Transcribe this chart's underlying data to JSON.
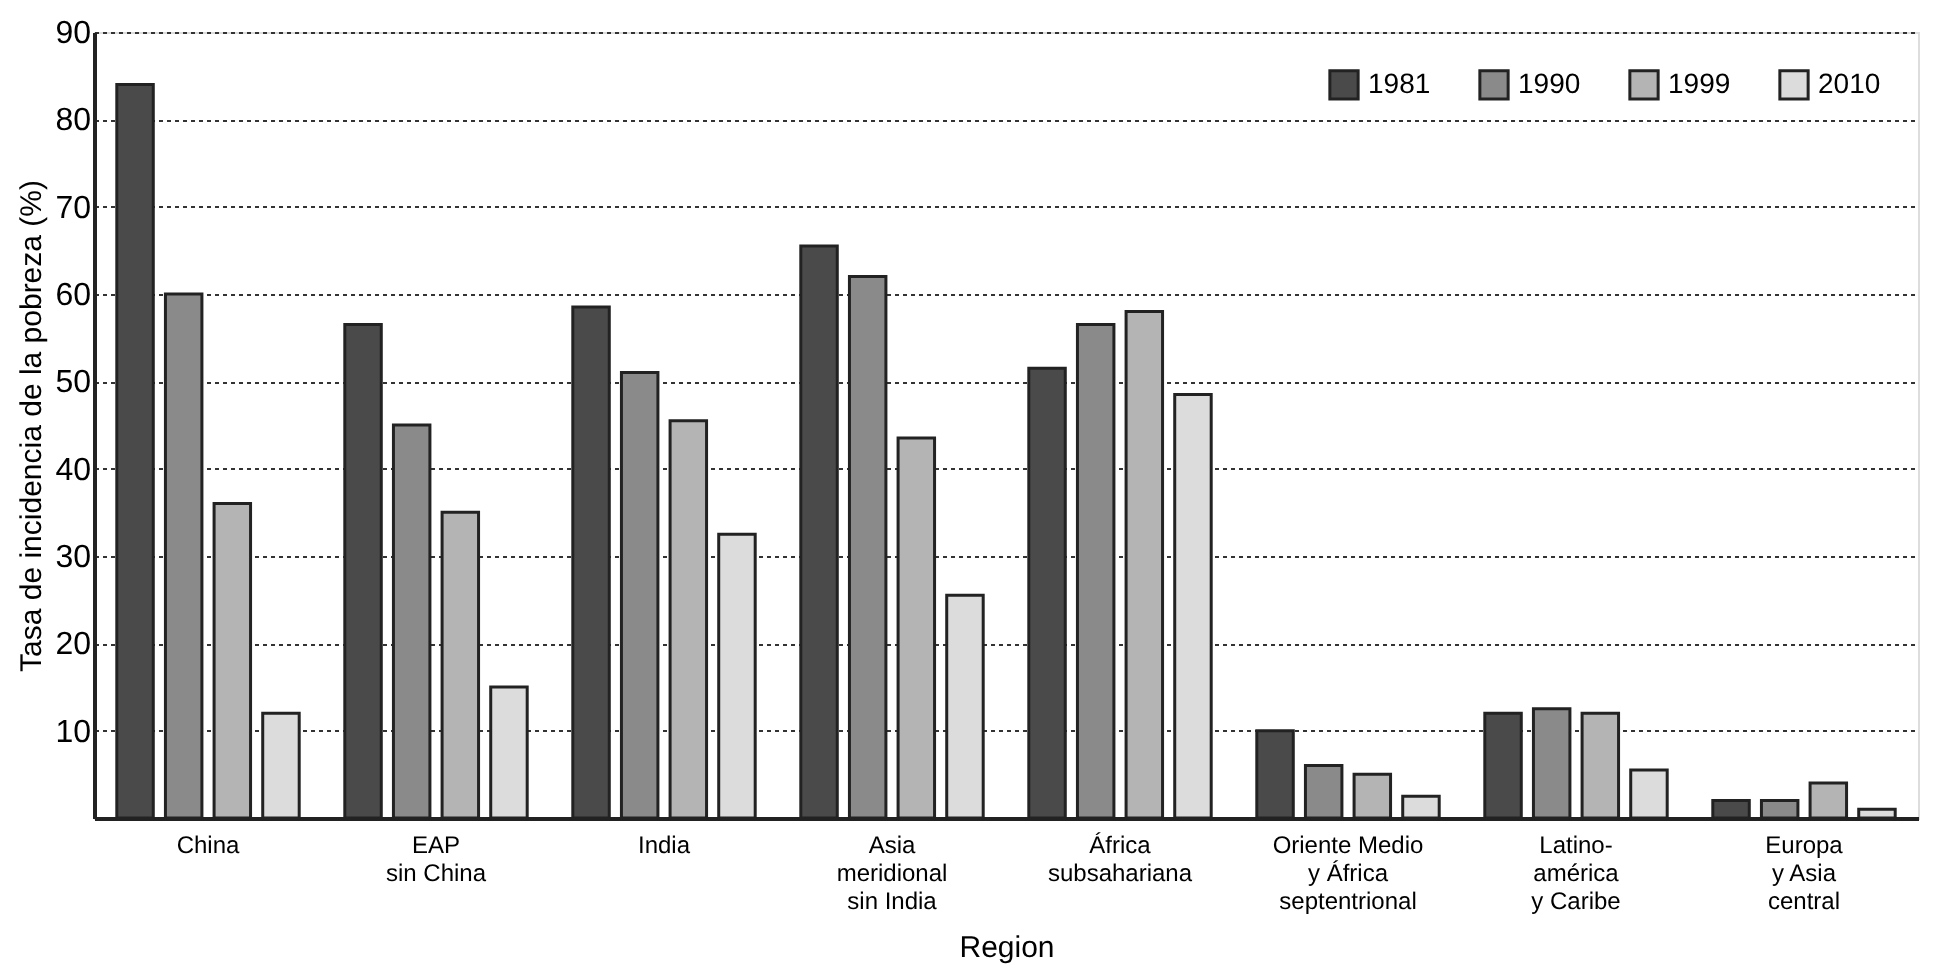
{
  "chart_data": {
    "type": "bar",
    "xlabel": "Region",
    "ylabel": "Tasa de incidencia de la pobreza (%)",
    "categories": [
      "China",
      "EAP\nsin China",
      "India",
      "Asia\nmeridional\nsin India",
      "África\nsubsahariana",
      "Oriente Medio\ny África\nseptentrional",
      "Latino-\namérica\ny Caribe",
      "Europa\ny Asia\ncentral"
    ],
    "series": [
      {
        "name": "1981",
        "color": "#4a4a4a",
        "values": [
          84,
          56.5,
          58.5,
          65.5,
          51.5,
          10,
          12,
          2
        ]
      },
      {
        "name": "1990",
        "color": "#8a8a8a",
        "values": [
          60,
          45,
          51,
          62,
          56.5,
          6,
          12.5,
          2
        ]
      },
      {
        "name": "1999",
        "color": "#b4b4b4",
        "values": [
          36,
          35,
          45.5,
          43.5,
          58,
          5,
          12,
          4
        ]
      },
      {
        "name": "2010",
        "color": "#dcdcdc",
        "values": [
          12,
          15,
          32.5,
          25.5,
          48.5,
          2.5,
          5.5,
          1
        ]
      }
    ],
    "ylim": [
      0,
      90
    ],
    "yticks": [
      10,
      20,
      30,
      40,
      50,
      60,
      70,
      80,
      90
    ],
    "grid": "y",
    "legend": "top right"
  }
}
